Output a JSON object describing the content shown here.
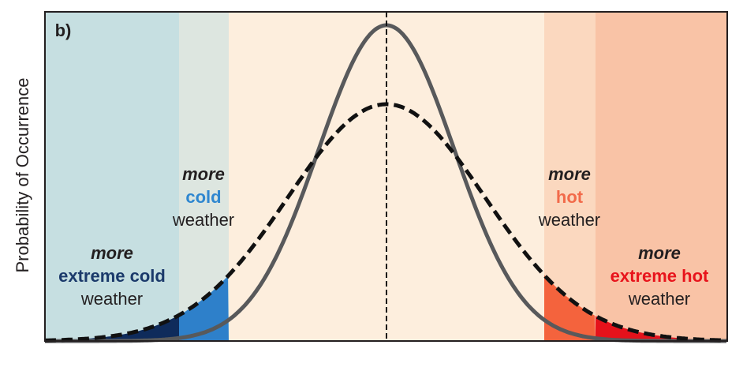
{
  "panel_label": "b)",
  "y_axis_label": "Probability of Occurrence",
  "annotations": [
    {
      "lines": [
        "more",
        "extreme cold",
        "weather"
      ]
    },
    {
      "lines": [
        "more",
        "cold",
        "weather"
      ]
    },
    {
      "lines": [
        "more",
        "hot",
        "weather"
      ]
    },
    {
      "lines": [
        "more",
        "extreme hot",
        "weather"
      ]
    }
  ]
}
